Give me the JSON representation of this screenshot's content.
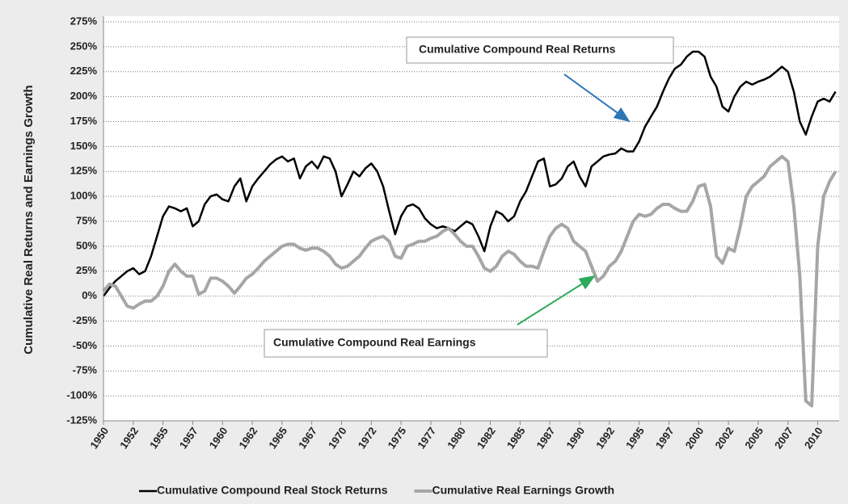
{
  "chart_data": {
    "type": "line",
    "y_label": "Cumulative Real Returns and Earnings Growth",
    "annotations": [
      "Cumulative Compound Real Returns",
      "Cumulative Compound Real Earnings"
    ],
    "x": [
      1950,
      1950.5,
      1951,
      1951.5,
      1952,
      1952.5,
      1953,
      1953.5,
      1954,
      1954.5,
      1955,
      1955.5,
      1956,
      1956.5,
      1957,
      1957.5,
      1958,
      1958.5,
      1959,
      1959.5,
      1960,
      1960.5,
      1961,
      1961.5,
      1962,
      1962.5,
      1963,
      1963.5,
      1964,
      1964.5,
      1965,
      1965.5,
      1966,
      1966.5,
      1967,
      1967.5,
      1968,
      1968.5,
      1969,
      1969.5,
      1970,
      1970.5,
      1971,
      1971.5,
      1972,
      1972.5,
      1973,
      1973.5,
      1974,
      1974.5,
      1975,
      1975.5,
      1976,
      1976.5,
      1977,
      1977.5,
      1978,
      1978.5,
      1979,
      1979.5,
      1980,
      1980.5,
      1981,
      1981.5,
      1982,
      1982.5,
      1983,
      1983.5,
      1984,
      1984.5,
      1985,
      1985.5,
      1986,
      1986.5,
      1987,
      1987.5,
      1988,
      1988.5,
      1989,
      1989.5,
      1990,
      1990.5,
      1991,
      1991.5,
      1992,
      1992.5,
      1993,
      1993.5,
      1994,
      1994.5,
      1995,
      1995.5,
      1996,
      1996.5,
      1997,
      1997.5,
      1998,
      1998.5,
      1999,
      1999.5,
      2000,
      2000.5,
      2001,
      2001.5,
      2002,
      2002.5,
      2003,
      2003.5,
      2004,
      2004.5,
      2005,
      2005.5,
      2006,
      2006.5,
      2007,
      2007.5,
      2008,
      2008.5,
      2009,
      2009.5,
      2010,
      2010.5,
      2011,
      2011.5
    ],
    "series": [
      {
        "name": "Cumulative Compound Real Stock Returns",
        "color": "#000000",
        "values": [
          0,
          8,
          15,
          20,
          25,
          28,
          22,
          25,
          40,
          60,
          80,
          90,
          88,
          85,
          88,
          70,
          75,
          92,
          100,
          102,
          97,
          95,
          110,
          118,
          95,
          110,
          118,
          125,
          132,
          137,
          140,
          135,
          138,
          118,
          130,
          135,
          128,
          140,
          138,
          125,
          100,
          112,
          125,
          120,
          128,
          133,
          125,
          110,
          85,
          62,
          80,
          90,
          92,
          88,
          78,
          72,
          68,
          70,
          68,
          65,
          70,
          75,
          72,
          60,
          45,
          70,
          85,
          82,
          75,
          80,
          95,
          105,
          120,
          135,
          138,
          110,
          112,
          118,
          130,
          135,
          120,
          110,
          130,
          135,
          140,
          142,
          143,
          148,
          145,
          145,
          155,
          170,
          180,
          190,
          205,
          218,
          228,
          232,
          240,
          245,
          245,
          240,
          220,
          210,
          190,
          185,
          200,
          210,
          215,
          212,
          215,
          217,
          220,
          225,
          230,
          225,
          205,
          175,
          162,
          180,
          195,
          198,
          195,
          205
        ]
      },
      {
        "name": "Cumulative Real Earnings Growth",
        "color": "#a6a6a6",
        "values": [
          5,
          12,
          10,
          0,
          -10,
          -12,
          -8,
          -5,
          -5,
          0,
          10,
          25,
          32,
          25,
          20,
          20,
          2,
          5,
          18,
          18,
          15,
          10,
          3,
          10,
          18,
          22,
          28,
          35,
          40,
          45,
          50,
          52,
          52,
          48,
          46,
          48,
          48,
          45,
          40,
          32,
          28,
          30,
          35,
          40,
          48,
          55,
          58,
          60,
          55,
          40,
          38,
          50,
          52,
          55,
          55,
          58,
          60,
          65,
          68,
          62,
          55,
          50,
          50,
          40,
          28,
          25,
          30,
          40,
          45,
          42,
          35,
          30,
          30,
          28,
          45,
          60,
          68,
          72,
          68,
          55,
          50,
          45,
          30,
          15,
          20,
          30,
          35,
          45,
          60,
          75,
          82,
          80,
          82,
          88,
          92,
          92,
          88,
          85,
          85,
          95,
          110,
          112,
          90,
          40,
          33,
          48,
          45,
          70,
          100,
          110,
          115,
          120,
          130,
          135,
          140,
          135,
          90,
          20,
          -105,
          -110,
          50,
          100,
          115,
          125
        ]
      }
    ],
    "xlim": [
      1950,
      2011.8
    ],
    "xticks": [
      1950,
      {
        "value": 1952.5,
        "label": "1952"
      },
      1955,
      {
        "value": 1957.5,
        "label": "1957"
      },
      1960,
      {
        "value": 1962.5,
        "label": "1962"
      },
      1965,
      {
        "value": 1967.5,
        "label": "1967"
      },
      1970,
      {
        "value": 1972.5,
        "label": "1972"
      },
      1975,
      {
        "value": 1977.5,
        "label": "1977"
      },
      1980,
      {
        "value": 1982.5,
        "label": "1982"
      },
      1985,
      {
        "value": 1987.5,
        "label": "1987"
      },
      1990,
      {
        "value": 1992.5,
        "label": "1992"
      },
      1995,
      {
        "value": 1997.5,
        "label": "1997"
      },
      2000,
      {
        "value": 2002.5,
        "label": "2002"
      },
      2005,
      {
        "value": 2007.5,
        "label": "2007"
      },
      2010
    ],
    "ylim": [
      -125,
      275
    ],
    "yticks": [
      {
        "value": -125,
        "label": "-125%"
      },
      {
        "value": -100,
        "label": "-100%"
      },
      {
        "value": -75,
        "label": "-75%"
      },
      {
        "value": -50,
        "label": "-50%"
      },
      {
        "value": -25,
        "label": "-25%"
      },
      {
        "value": 0,
        "label": "0%"
      },
      {
        "value": 25,
        "label": "25%"
      },
      {
        "value": 50,
        "label": "50%"
      },
      {
        "value": 75,
        "label": "75%"
      },
      {
        "value": 100,
        "label": "100%"
      },
      {
        "value": 125,
        "label": "125%"
      },
      {
        "value": 150,
        "label": "150%"
      },
      {
        "value": 175,
        "label": "175%"
      },
      {
        "value": 200,
        "label": "200%"
      },
      {
        "value": 225,
        "label": "225%"
      },
      {
        "value": 250,
        "label": "250%"
      },
      {
        "value": 275,
        "label": "275%"
      }
    ],
    "grid": true,
    "legend": "bottom"
  }
}
